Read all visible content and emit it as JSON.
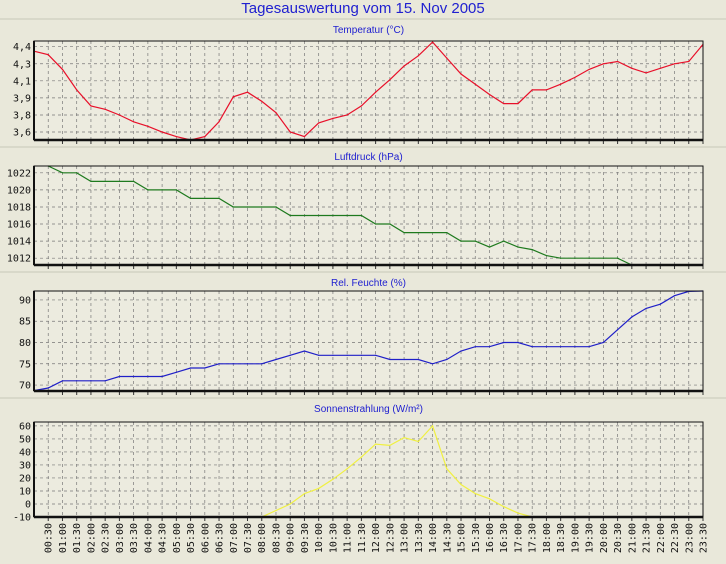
{
  "title": "Tagesauswertung vom 15. Nov 2005",
  "colors": {
    "background": "#e9e8da",
    "plot_background": "#ecebdf",
    "grid": "#777777",
    "title": "#2020d0"
  },
  "chart_data": [
    {
      "type": "line",
      "title": "Temperatur (°C)",
      "color": "#e8102a",
      "yticks": [
        "4,4",
        "4,3",
        "4,1",
        "3,9",
        "3,8",
        "3,6"
      ],
      "ytick_values": [
        4.4,
        4.25,
        4.1,
        3.95,
        3.8,
        3.65
      ],
      "ylim": [
        3.58,
        4.45
      ],
      "grid": true,
      "values": [
        4.36,
        4.33,
        4.2,
        4.02,
        3.88,
        3.85,
        3.8,
        3.74,
        3.7,
        3.65,
        3.61,
        3.58,
        3.61,
        3.74,
        3.96,
        4.0,
        3.92,
        3.82,
        3.65,
        3.61,
        3.73,
        3.77,
        3.8,
        3.88,
        4.0,
        4.11,
        4.23,
        4.32,
        4.44,
        4.3,
        4.16,
        4.07,
        3.98,
        3.9,
        3.9,
        4.02,
        4.02,
        4.07,
        4.13,
        4.2,
        4.25,
        4.27,
        4.21,
        4.17,
        4.21,
        4.25,
        4.27,
        4.42
      ]
    },
    {
      "type": "line",
      "title": "Luftdruck (hPa)",
      "color": "#1e7a1e",
      "yticks": [
        "1022",
        "1020",
        "1018",
        "1016",
        "1014",
        "1012"
      ],
      "ytick_values": [
        1022,
        1020,
        1018,
        1016,
        1014,
        1012
      ],
      "ylim": [
        1011.2,
        1022.8
      ],
      "grid": true,
      "values": [
        null,
        1022.8,
        1022,
        1022,
        1021,
        1021,
        1021,
        1021,
        1020,
        1020,
        1020,
        1019,
        1019,
        1019,
        1018,
        1018,
        1018,
        1018,
        1017,
        1017,
        1017,
        1017,
        1017,
        1017,
        1016,
        1016,
        1015,
        1015,
        1015,
        1015,
        1014,
        1014,
        1013.3,
        1014,
        1013.3,
        1013,
        1012.3,
        1012,
        1012,
        1012,
        1012,
        1012,
        1011.2,
        null,
        null,
        null,
        null,
        null
      ]
    },
    {
      "type": "line",
      "title": "Rel. Feuchte (%)",
      "color": "#2020c8",
      "yticks": [
        "90",
        "85",
        "80",
        "75",
        "70"
      ],
      "ytick_values": [
        90,
        85,
        80,
        75,
        70
      ],
      "ylim": [
        68.6,
        92.1
      ],
      "grid": true,
      "values": [
        68.7,
        69.3,
        71,
        71,
        71,
        71,
        72,
        72,
        72,
        72,
        73,
        74,
        74,
        75,
        75,
        75,
        75,
        76,
        77,
        78,
        77,
        77,
        77,
        77,
        77,
        76,
        76,
        76,
        75,
        76,
        78,
        79,
        79,
        80,
        80,
        79,
        79,
        79,
        79,
        79,
        80,
        83,
        86,
        88,
        89,
        91,
        92,
        92.1
      ]
    },
    {
      "type": "line",
      "title": "Sonnenstrahlung (W/m²)",
      "color": "#f0f040",
      "yticks": [
        "60",
        "50",
        "40",
        "30",
        "20",
        "10",
        "0",
        "-10"
      ],
      "ytick_values": [
        60,
        50,
        40,
        30,
        20,
        10,
        0,
        -10
      ],
      "ylim": [
        -10,
        63
      ],
      "grid": true,
      "values": [
        -10,
        -10,
        -10,
        -10,
        -10,
        -10,
        -10,
        -10,
        -10,
        -10,
        -10,
        -10,
        -10,
        -10,
        -10,
        -10,
        -10,
        -5,
        0,
        8,
        12,
        19,
        27,
        36,
        46,
        45,
        51,
        48,
        60,
        27,
        15,
        8,
        4,
        -2,
        -7,
        -10,
        -10,
        -10,
        -10,
        -10,
        -10,
        -10,
        -10,
        -10,
        -10,
        -10,
        -10,
        -10
      ]
    }
  ],
  "x_categories": [
    "00:00",
    "00:30",
    "01:00",
    "01:30",
    "02:00",
    "02:30",
    "03:00",
    "03:30",
    "04:00",
    "04:30",
    "05:00",
    "05:30",
    "06:00",
    "06:30",
    "07:00",
    "07:30",
    "08:00",
    "08:30",
    "09:00",
    "09:30",
    "10:00",
    "10:30",
    "11:00",
    "11:30",
    "12:00",
    "12:30",
    "13:00",
    "13:30",
    "14:00",
    "14:30",
    "15:00",
    "15:30",
    "16:00",
    "16:30",
    "17:00",
    "17:30",
    "18:00",
    "18:30",
    "19:00",
    "19:30",
    "20:00",
    "20:30",
    "21:00",
    "21:30",
    "22:00",
    "22:30",
    "23:00",
    "23:30"
  ]
}
